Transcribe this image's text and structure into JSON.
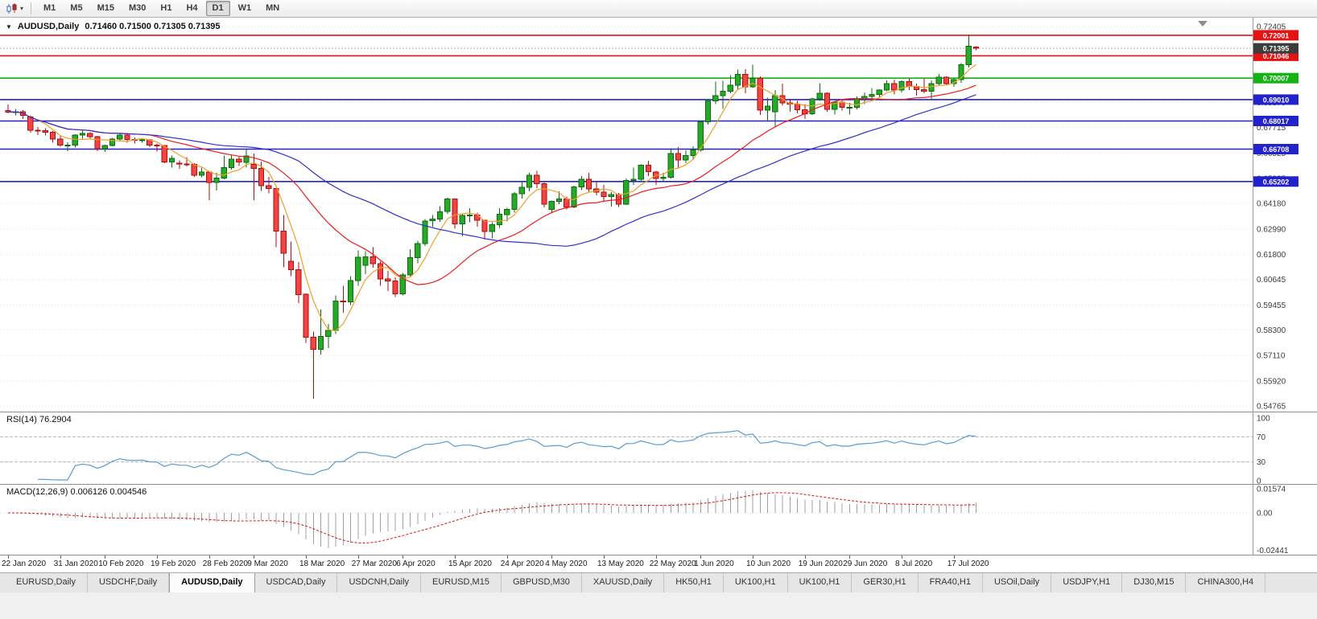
{
  "toolbar": {
    "chart_type_icon": "candlestick-chart-icon",
    "dropdown_caret": "▾",
    "timeframes": [
      "M1",
      "M5",
      "M15",
      "M30",
      "H1",
      "H4",
      "D1",
      "W1",
      "MN"
    ],
    "active_timeframe": "D1"
  },
  "chart_header": {
    "collapse_icon": "▼",
    "symbol": "AUDUSD,Daily",
    "ohlc": "0.71460 0.71500 0.71305 0.71395"
  },
  "price_axis": {
    "grid_labels": [
      "0.72405",
      "0.71250",
      "0.70060",
      "0.68870",
      "0.67715",
      "0.66525",
      "0.65335",
      "0.64180",
      "0.62990",
      "0.61800",
      "0.60645",
      "0.59455",
      "0.58300",
      "0.57110",
      "0.55920",
      "0.54765"
    ],
    "current_price": "0.71395",
    "current_price_color": "#3c3c3c"
  },
  "hlines": [
    {
      "price": 0.72001,
      "label": "0.72001",
      "color": "#e51212"
    },
    {
      "price": 0.71046,
      "label": "0.71046",
      "color": "#e51212"
    },
    {
      "price": 0.70007,
      "label": "0.70007",
      "color": "#14b214"
    },
    {
      "price": 0.6901,
      "label": "0.69010",
      "color": "#2222cc"
    },
    {
      "price": 0.68017,
      "label": "0.68017",
      "color": "#2222cc"
    },
    {
      "price": 0.66708,
      "label": "0.66708",
      "color": "#2222cc"
    },
    {
      "price": 0.65202,
      "label": "0.65202",
      "color": "#2222cc"
    }
  ],
  "time_axis": {
    "labels": [
      {
        "bar": 0,
        "text": "22 Jan 2020"
      },
      {
        "bar": 7,
        "text": "31 Jan 2020"
      },
      {
        "bar": 13,
        "text": "10 Feb 2020"
      },
      {
        "bar": 20,
        "text": "19 Feb 2020"
      },
      {
        "bar": 27,
        "text": "28 Feb 2020"
      },
      {
        "bar": 33,
        "text": "9 Mar 2020"
      },
      {
        "bar": 40,
        "text": "18 Mar 2020"
      },
      {
        "bar": 47,
        "text": "27 Mar 2020"
      },
      {
        "bar": 53,
        "text": "6 Apr 2020"
      },
      {
        "bar": 60,
        "text": "15 Apr 2020"
      },
      {
        "bar": 67,
        "text": "24 Apr 2020"
      },
      {
        "bar": 73,
        "text": "4 May 2020"
      },
      {
        "bar": 80,
        "text": "13 May 2020"
      },
      {
        "bar": 87,
        "text": "22 May 2020"
      },
      {
        "bar": 93,
        "text": "1 Jun 2020"
      },
      {
        "bar": 100,
        "text": "10 Jun 2020"
      },
      {
        "bar": 107,
        "text": "19 Jun 2020"
      },
      {
        "bar": 113,
        "text": "29 Jun 2020"
      },
      {
        "bar": 120,
        "text": "8 Jul 2020"
      },
      {
        "bar": 127,
        "text": "17 Jul 2020"
      }
    ]
  },
  "rsi_panel": {
    "label": "RSI(14) 76.2904",
    "levels": [
      "100",
      "70",
      "30",
      "0"
    ],
    "dashed_levels": [
      70,
      30
    ],
    "line_color": "#5a9bd4"
  },
  "macd_panel": {
    "label": "MACD(12,26,9) 0.006126 0.004546",
    "axis_labels": [
      "0.01574",
      "0.00",
      "-0.02441"
    ],
    "histogram_color": "#a0a0a0",
    "signal_color": "#e01212"
  },
  "bottom_tabs": {
    "items": [
      "EURUSD,Daily",
      "USDCHF,Daily",
      "AUDUSD,Daily",
      "USDCAD,Daily",
      "USDCNH,Daily",
      "EURUSD,M15",
      "GBPUSD,M30",
      "XAUUSD,Daily",
      "HK50,H1",
      "UK100,H1",
      "UK100,H1",
      "GER30,H1",
      "FRA40,H1",
      "USOil,Daily",
      "USDJPY,H1",
      "DJ30,M15",
      "CHINA300,H4"
    ],
    "active": "AUDUSD,Daily"
  },
  "chart_data": {
    "type": "candlestick",
    "symbol": "AUDUSD",
    "period": "Daily",
    "current_ohlc": {
      "open": 0.7146,
      "high": 0.715,
      "low": 0.71305,
      "close": 0.71395
    },
    "visible_price_top": 0.7282,
    "bull_color": "#27aa27",
    "bull_border": "#0c6a0c",
    "bear_color": "#ef4545",
    "bear_border": "#b40b0b",
    "moving_averages": [
      {
        "period": 5,
        "color": "#eda128"
      },
      {
        "period": 20,
        "color": "#ee1c1c"
      },
      {
        "period": 40,
        "color": "#3030cc"
      }
    ],
    "indicators": {
      "rsi": {
        "period": 14,
        "current": 76.2904
      },
      "macd": {
        "fast": 12,
        "slow": 26,
        "signal": 9,
        "current_macd": 0.006126,
        "current_signal": 0.004546
      }
    },
    "ohlc": [
      [
        0.685,
        0.6878,
        0.6838,
        0.6843
      ],
      [
        0.6843,
        0.6858,
        0.6827,
        0.6845
      ],
      [
        0.6845,
        0.6852,
        0.681,
        0.6827
      ],
      [
        0.682,
        0.6828,
        0.6748,
        0.6758
      ],
      [
        0.6758,
        0.6774,
        0.6736,
        0.6757
      ],
      [
        0.6757,
        0.6767,
        0.6735,
        0.6749
      ],
      [
        0.6749,
        0.6755,
        0.67,
        0.6718
      ],
      [
        0.6718,
        0.6733,
        0.6682,
        0.669
      ],
      [
        0.669,
        0.6702,
        0.6662,
        0.669
      ],
      [
        0.669,
        0.674,
        0.6678,
        0.6737
      ],
      [
        0.6737,
        0.6756,
        0.672,
        0.6744
      ],
      [
        0.6744,
        0.675,
        0.6715,
        0.6729
      ],
      [
        0.6729,
        0.6733,
        0.6662,
        0.6672
      ],
      [
        0.6672,
        0.6692,
        0.6658,
        0.6688
      ],
      [
        0.6688,
        0.6723,
        0.6683,
        0.6718
      ],
      [
        0.6718,
        0.6745,
        0.671,
        0.6737
      ],
      [
        0.6737,
        0.674,
        0.67,
        0.6716
      ],
      [
        0.6716,
        0.6724,
        0.6697,
        0.6712
      ],
      [
        0.6712,
        0.6722,
        0.67,
        0.6714
      ],
      [
        0.6714,
        0.6717,
        0.668,
        0.669
      ],
      [
        0.669,
        0.6696,
        0.666,
        0.6687
      ],
      [
        0.6687,
        0.669,
        0.6605,
        0.661
      ],
      [
        0.661,
        0.664,
        0.6585,
        0.6627
      ],
      [
        0.6605,
        0.6618,
        0.658,
        0.6601
      ],
      [
        0.6601,
        0.6633,
        0.659,
        0.66
      ],
      [
        0.66,
        0.6605,
        0.6542,
        0.6549
      ],
      [
        0.6549,
        0.6584,
        0.654,
        0.6565
      ],
      [
        0.6565,
        0.6568,
        0.6433,
        0.6515
      ],
      [
        0.6515,
        0.656,
        0.6478,
        0.6536
      ],
      [
        0.6536,
        0.664,
        0.653,
        0.6584
      ],
      [
        0.6584,
        0.6645,
        0.6576,
        0.6624
      ],
      [
        0.6624,
        0.6638,
        0.6593,
        0.661
      ],
      [
        0.661,
        0.6668,
        0.6585,
        0.6639
      ],
      [
        0.66,
        0.665,
        0.6434,
        0.6581
      ],
      [
        0.6581,
        0.6613,
        0.6477,
        0.65
      ],
      [
        0.65,
        0.6542,
        0.6466,
        0.6487
      ],
      [
        0.6487,
        0.6489,
        0.6215,
        0.629
      ],
      [
        0.629,
        0.6365,
        0.6122,
        0.6187
      ],
      [
        0.615,
        0.624,
        0.608,
        0.611
      ],
      [
        0.611,
        0.6145,
        0.5955,
        0.5995
      ],
      [
        0.5995,
        0.6,
        0.577,
        0.5795
      ],
      [
        0.5795,
        0.5822,
        0.551,
        0.574
      ],
      [
        0.574,
        0.5925,
        0.5715,
        0.58
      ],
      [
        0.58,
        0.5857,
        0.5745,
        0.5827
      ],
      [
        0.5827,
        0.599,
        0.581,
        0.5965
      ],
      [
        0.5965,
        0.6035,
        0.591,
        0.596
      ],
      [
        0.596,
        0.608,
        0.5945,
        0.606
      ],
      [
        0.606,
        0.62,
        0.6035,
        0.6167
      ],
      [
        0.613,
        0.6195,
        0.609,
        0.617
      ],
      [
        0.617,
        0.6215,
        0.612,
        0.6137
      ],
      [
        0.6137,
        0.615,
        0.6035,
        0.6067
      ],
      [
        0.6067,
        0.6105,
        0.601,
        0.6058
      ],
      [
        0.6058,
        0.6075,
        0.5982,
        0.5998
      ],
      [
        0.5998,
        0.6095,
        0.599,
        0.6086
      ],
      [
        0.6086,
        0.6205,
        0.608,
        0.6166
      ],
      [
        0.6166,
        0.6245,
        0.614,
        0.6232
      ],
      [
        0.6232,
        0.6345,
        0.622,
        0.6337
      ],
      [
        0.6337,
        0.6365,
        0.631,
        0.6345
      ],
      [
        0.6345,
        0.6405,
        0.6332,
        0.638
      ],
      [
        0.638,
        0.6445,
        0.637,
        0.6438
      ],
      [
        0.6438,
        0.644,
        0.63,
        0.6323
      ],
      [
        0.6323,
        0.637,
        0.6265,
        0.6363
      ],
      [
        0.6363,
        0.6395,
        0.633,
        0.6364
      ],
      [
        0.6364,
        0.6375,
        0.631,
        0.634
      ],
      [
        0.634,
        0.6342,
        0.625,
        0.6287
      ],
      [
        0.6287,
        0.633,
        0.6255,
        0.632
      ],
      [
        0.632,
        0.6395,
        0.6305,
        0.6367
      ],
      [
        0.6367,
        0.6397,
        0.6335,
        0.639
      ],
      [
        0.639,
        0.647,
        0.6375,
        0.6463
      ],
      [
        0.6463,
        0.652,
        0.644,
        0.6494
      ],
      [
        0.6494,
        0.656,
        0.6475,
        0.655
      ],
      [
        0.655,
        0.657,
        0.649,
        0.651
      ],
      [
        0.651,
        0.6515,
        0.64,
        0.6415
      ],
      [
        0.639,
        0.6432,
        0.6372,
        0.6428
      ],
      [
        0.6428,
        0.6475,
        0.6415,
        0.6438
      ],
      [
        0.6438,
        0.645,
        0.639,
        0.6402
      ],
      [
        0.6402,
        0.65,
        0.6395,
        0.6495
      ],
      [
        0.6495,
        0.6546,
        0.648,
        0.653
      ],
      [
        0.653,
        0.656,
        0.6473,
        0.6485
      ],
      [
        0.6485,
        0.652,
        0.6455,
        0.647
      ],
      [
        0.647,
        0.6505,
        0.6425,
        0.645
      ],
      [
        0.645,
        0.647,
        0.6403,
        0.646
      ],
      [
        0.646,
        0.6467,
        0.6402,
        0.6415
      ],
      [
        0.6415,
        0.6535,
        0.641,
        0.6525
      ],
      [
        0.6525,
        0.6585,
        0.6505,
        0.653
      ],
      [
        0.653,
        0.66,
        0.652,
        0.6595
      ],
      [
        0.6595,
        0.6616,
        0.6545,
        0.6565
      ],
      [
        0.6565,
        0.657,
        0.6505,
        0.6535
      ],
      [
        0.6535,
        0.656,
        0.652,
        0.654
      ],
      [
        0.654,
        0.6675,
        0.6535,
        0.665
      ],
      [
        0.665,
        0.668,
        0.6585,
        0.662
      ],
      [
        0.662,
        0.6665,
        0.6605,
        0.664
      ],
      [
        0.664,
        0.6684,
        0.662,
        0.6667
      ],
      [
        0.6667,
        0.68,
        0.666,
        0.6797
      ],
      [
        0.6797,
        0.69,
        0.6785,
        0.6895
      ],
      [
        0.6895,
        0.6985,
        0.688,
        0.692
      ],
      [
        0.692,
        0.6988,
        0.6858,
        0.694
      ],
      [
        0.694,
        0.7015,
        0.693,
        0.6968
      ],
      [
        0.6968,
        0.704,
        0.6945,
        0.7019
      ],
      [
        0.7019,
        0.7043,
        0.693,
        0.696
      ],
      [
        0.696,
        0.7063,
        0.6955,
        0.7
      ],
      [
        0.7,
        0.701,
        0.683,
        0.6852
      ],
      [
        0.6852,
        0.691,
        0.68,
        0.687
      ],
      [
        0.6845,
        0.6945,
        0.6775,
        0.692
      ],
      [
        0.692,
        0.6975,
        0.6875,
        0.6885
      ],
      [
        0.6885,
        0.6905,
        0.6845,
        0.688
      ],
      [
        0.688,
        0.6895,
        0.6837,
        0.6853
      ],
      [
        0.6853,
        0.688,
        0.681,
        0.6835
      ],
      [
        0.6835,
        0.691,
        0.683,
        0.6905
      ],
      [
        0.6905,
        0.6977,
        0.6895,
        0.693
      ],
      [
        0.693,
        0.6935,
        0.6845,
        0.6855
      ],
      [
        0.6855,
        0.6895,
        0.6832,
        0.689
      ],
      [
        0.689,
        0.69,
        0.685,
        0.6865
      ],
      [
        0.6865,
        0.6885,
        0.6832,
        0.6865
      ],
      [
        0.6865,
        0.6915,
        0.6855,
        0.6904
      ],
      [
        0.6904,
        0.6935,
        0.688,
        0.6915
      ],
      [
        0.6915,
        0.6955,
        0.69,
        0.6925
      ],
      [
        0.6925,
        0.695,
        0.691,
        0.6945
      ],
      [
        0.6945,
        0.699,
        0.694,
        0.6975
      ],
      [
        0.6975,
        0.6995,
        0.6925,
        0.6945
      ],
      [
        0.6945,
        0.699,
        0.6935,
        0.6985
      ],
      [
        0.6985,
        0.7,
        0.6945,
        0.6962
      ],
      [
        0.6962,
        0.6975,
        0.692,
        0.6948
      ],
      [
        0.6948,
        0.7,
        0.693,
        0.694
      ],
      [
        0.694,
        0.699,
        0.6905,
        0.6975
      ],
      [
        0.6975,
        0.702,
        0.6965,
        0.7005
      ],
      [
        0.7005,
        0.701,
        0.697,
        0.6975
      ],
      [
        0.6975,
        0.7,
        0.696,
        0.6995
      ],
      [
        0.6995,
        0.707,
        0.698,
        0.7064
      ],
      [
        0.7064,
        0.7203,
        0.705,
        0.715
      ],
      [
        0.7146,
        0.715,
        0.71305,
        0.71395
      ]
    ]
  }
}
